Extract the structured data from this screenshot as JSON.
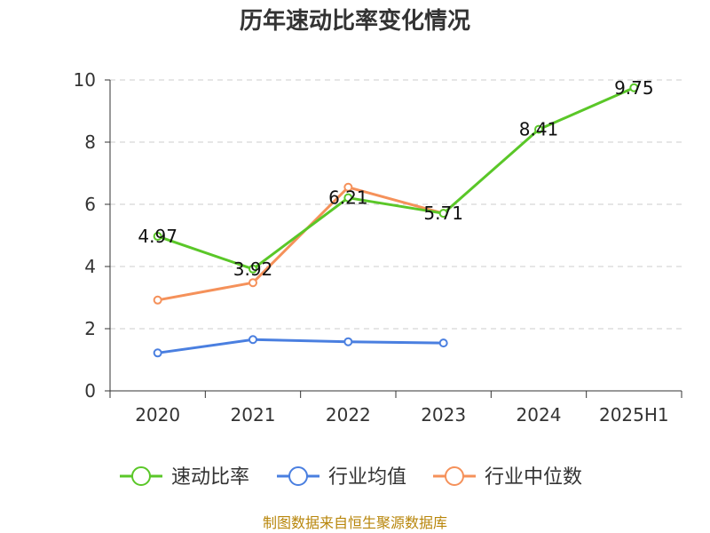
{
  "chart_data": {
    "type": "line",
    "title": "历年速动比率变化情况",
    "categories": [
      "2020",
      "2021",
      "2022",
      "2023",
      "2024",
      "2025H1"
    ],
    "ylim": [
      0,
      10
    ],
    "yticks": [
      0,
      2,
      4,
      6,
      8,
      10
    ],
    "grid": true,
    "legend_position": "bottom",
    "series": [
      {
        "name": "速动比率",
        "color": "#5ac728",
        "values": [
          4.97,
          3.92,
          6.21,
          5.71,
          8.41,
          9.75
        ],
        "labels": [
          "4.97",
          "3.92",
          "6.21",
          "5.71",
          "8.41",
          "9.75"
        ]
      },
      {
        "name": "行业均值",
        "color": "#4a7fe0",
        "values": [
          1.22,
          1.65,
          1.58,
          1.54,
          null,
          null
        ]
      },
      {
        "name": "行业中位数",
        "color": "#f5915a",
        "values": [
          2.92,
          3.48,
          6.55,
          5.71,
          null,
          null
        ]
      }
    ]
  },
  "source": "制图数据来自恒生聚源数据库"
}
